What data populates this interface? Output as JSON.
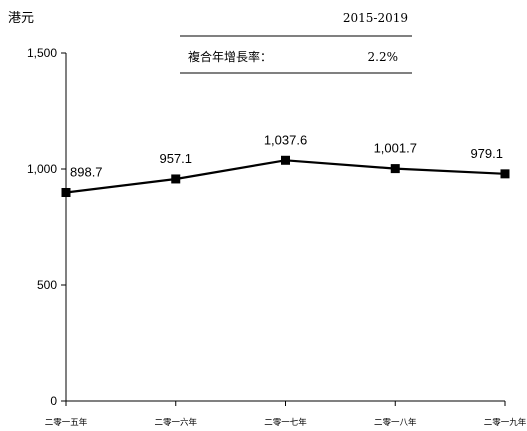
{
  "chart_data": {
    "type": "line",
    "unit_label": "港元",
    "categories": [
      "二零一五年",
      "二零一六年",
      "二零一七年",
      "二零一八年",
      "二零一九年"
    ],
    "series": [
      {
        "values": [
          898.7,
          957.1,
          1037.6,
          1001.7,
          979.1
        ]
      }
    ],
    "data_labels": [
      "898.7",
      "957.1",
      "1,037.6",
      "1,001.7",
      "979.1"
    ],
    "y_ticks": [
      0,
      500,
      1000,
      1500
    ],
    "y_tick_labels": [
      "0",
      "500",
      "1,000",
      "1,500"
    ],
    "ylim": [
      0,
      1500
    ],
    "grid": false,
    "legend": "none",
    "inset_table": {
      "period": "2015-2019",
      "label": "複合年增長率：",
      "value": "2.2%"
    },
    "colors": {
      "line": "#000000",
      "axis": "#000000",
      "text": "#000000"
    }
  }
}
